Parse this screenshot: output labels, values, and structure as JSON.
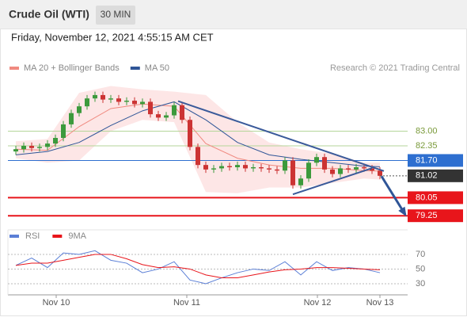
{
  "header": {
    "title": "Crude Oil (WTI)",
    "timeframe": "30 MIN",
    "timestamp": "Friday, November 12, 2021 4:55:15 AM CET"
  },
  "chart_data": [
    {
      "type": "candlestick",
      "source": "Research © 2021 Trading Central",
      "up_color": "#3c9a3c",
      "down_color": "#cc3333",
      "xlim": [
        -1,
        49
      ],
      "ylim": [
        78.8,
        85.3
      ],
      "xticks": [
        {
          "value": 5.1,
          "label": "Nov 10"
        },
        {
          "value": 21.6,
          "label": "Nov 11"
        },
        {
          "value": 38.1,
          "label": "Nov 12"
        },
        {
          "value": 46,
          "label": "Nov 13"
        }
      ],
      "x": [
        0,
        1,
        2,
        3,
        4,
        5,
        6,
        7,
        8,
        9,
        10,
        11,
        12,
        13,
        14,
        15,
        16,
        17,
        18,
        19,
        20,
        21,
        22,
        23,
        24,
        25,
        26,
        27,
        28,
        29,
        30,
        31,
        32,
        33,
        34,
        35,
        36,
        37,
        38,
        39,
        40,
        41,
        42,
        43,
        44,
        45,
        46
      ],
      "open": [
        82.1,
        82.2,
        82.35,
        82.25,
        82.3,
        82.45,
        82.7,
        83.3,
        83.8,
        84.1,
        84.45,
        84.6,
        84.4,
        84.45,
        84.3,
        84.35,
        84.2,
        84.3,
        83.75,
        83.6,
        83.7,
        84.15,
        83.5,
        82.3,
        81.5,
        81.3,
        81.35,
        81.45,
        81.4,
        81.5,
        81.35,
        81.4,
        81.35,
        81.3,
        81.25,
        81.7,
        80.6,
        80.9,
        81.6,
        81.85,
        81.3,
        81.1,
        81.35,
        81.3,
        81.4,
        81.35,
        81.25
      ],
      "high": [
        82.35,
        82.5,
        82.5,
        82.45,
        82.6,
        82.85,
        83.45,
        83.95,
        84.25,
        84.6,
        84.75,
        84.75,
        84.6,
        84.6,
        84.5,
        84.5,
        84.45,
        84.45,
        83.9,
        83.85,
        84.3,
        84.3,
        83.65,
        82.45,
        81.65,
        81.5,
        81.6,
        81.6,
        81.65,
        81.65,
        81.55,
        81.55,
        81.5,
        81.45,
        81.85,
        81.85,
        81.05,
        81.75,
        82.0,
        82.0,
        81.45,
        81.5,
        81.5,
        81.55,
        81.55,
        81.5,
        81.4
      ],
      "low": [
        81.95,
        82.05,
        82.1,
        82.1,
        82.15,
        82.3,
        82.55,
        83.15,
        83.65,
        83.95,
        84.3,
        84.25,
        84.25,
        84.15,
        84.15,
        84.05,
        84.05,
        83.6,
        83.45,
        83.45,
        83.55,
        83.35,
        82.15,
        81.35,
        81.15,
        81.15,
        81.2,
        81.25,
        81.25,
        81.2,
        81.2,
        81.2,
        81.15,
        81.1,
        81.1,
        80.45,
        80.45,
        80.75,
        81.45,
        81.15,
        80.95,
        80.95,
        81.15,
        81.15,
        81.2,
        81.1,
        80.87
      ],
      "close": [
        82.2,
        82.35,
        82.25,
        82.3,
        82.45,
        82.7,
        83.3,
        83.8,
        84.1,
        84.45,
        84.6,
        84.4,
        84.45,
        84.3,
        84.35,
        84.2,
        84.3,
        83.75,
        83.6,
        83.7,
        84.15,
        83.5,
        82.3,
        81.5,
        81.3,
        81.35,
        81.45,
        81.4,
        81.5,
        81.35,
        81.4,
        81.35,
        81.3,
        81.25,
        81.7,
        80.6,
        80.9,
        81.6,
        81.85,
        81.3,
        81.1,
        81.35,
        81.3,
        81.4,
        81.35,
        81.25,
        81.02
      ],
      "overlay_x": [
        0,
        4,
        8,
        12,
        16,
        20,
        24,
        28,
        32,
        36,
        40,
        44,
        46
      ],
      "overlays": [
        {
          "name": "MA 20 + Bollinger Bands",
          "color": "#f08a80",
          "band_color": "#fde0e0",
          "values": [
            82.2,
            82.15,
            83.2,
            84.0,
            84.2,
            84.1,
            82.45,
            81.8,
            81.5,
            81.35,
            81.35,
            81.25,
            81.23
          ],
          "upper": [
            82.55,
            82.65,
            84.7,
            85.0,
            84.85,
            84.75,
            84.6,
            83.4,
            82.5,
            82.2,
            82.0,
            81.6,
            81.6
          ],
          "lower": [
            81.8,
            81.6,
            81.7,
            83.0,
            83.5,
            83.4,
            80.3,
            80.25,
            80.5,
            80.5,
            80.7,
            80.9,
            80.85
          ]
        },
        {
          "name": "MA 50",
          "color": "#2f5597",
          "values": [
            81.95,
            82.1,
            82.5,
            83.25,
            83.9,
            84.3,
            83.5,
            82.5,
            81.95,
            81.75,
            81.6,
            81.45,
            81.42
          ]
        }
      ],
      "trendlines": [
        {
          "x": [
            20.5,
            46.5
          ],
          "y": [
            84.33,
            81.23
          ],
          "color": "#3a5a9a"
        },
        {
          "x": [
            35,
            45
          ],
          "y": [
            80.2,
            81.36
          ],
          "color": "#3a5a9a"
        }
      ],
      "arrow": {
        "x": [
          46.2,
          49.2
        ],
        "y": [
          81.0,
          79.3
        ],
        "color": "#2f5597"
      },
      "levels": [
        {
          "value": 83,
          "label": "83.00",
          "color": "#b5d69a",
          "box": false
        },
        {
          "value": 82.35,
          "label": "82.35",
          "color": "#b5d69a",
          "box": false
        },
        {
          "value": 81.7,
          "label": "81.70",
          "color": "#2e6fd0",
          "box": true
        },
        {
          "value": 80.05,
          "label": "80.05",
          "color": "#e8151b",
          "box": true
        },
        {
          "value": 79.25,
          "label": "79.25",
          "color": "#e8151b",
          "box": true
        }
      ],
      "last_price": {
        "value": 81.02,
        "label": "81.02",
        "color": "#333333"
      }
    },
    {
      "type": "line",
      "ylim": [
        20,
        92
      ],
      "yticks": [
        70,
        50,
        30
      ],
      "grid": true,
      "x": [
        0,
        2,
        4,
        6,
        8,
        10,
        12,
        14,
        16,
        18,
        20,
        22,
        24,
        26,
        28,
        30,
        32,
        34,
        36,
        38,
        40,
        42,
        44,
        46
      ],
      "series": [
        {
          "name": "RSI",
          "color": "#5b7fd6",
          "values": [
            55,
            65,
            52,
            72,
            70,
            75,
            62,
            58,
            45,
            50,
            60,
            35,
            30,
            38,
            45,
            50,
            48,
            60,
            42,
            60,
            48,
            52,
            50,
            45
          ]
        },
        {
          "name": "9MA",
          "color": "#e8151b",
          "values": [
            55,
            58,
            58,
            62,
            66,
            70,
            70,
            64,
            56,
            52,
            53,
            50,
            42,
            38,
            38,
            42,
            46,
            49,
            50,
            52,
            52,
            51,
            50,
            49
          ]
        }
      ]
    }
  ]
}
